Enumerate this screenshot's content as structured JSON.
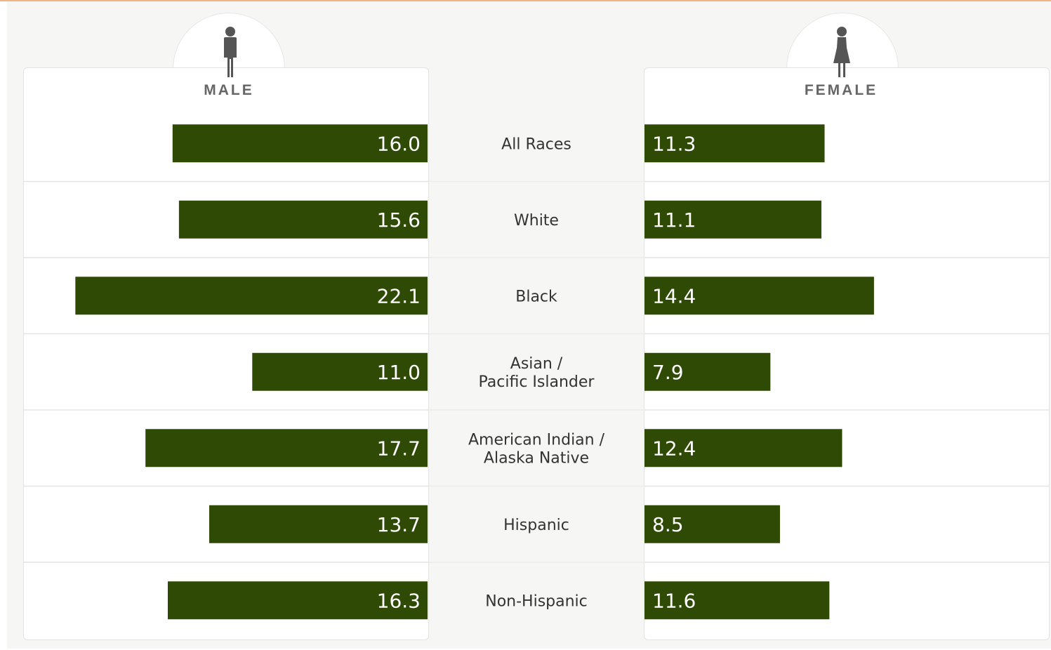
{
  "chart_data": {
    "type": "bar",
    "categories": [
      "All Races",
      "White",
      "Black",
      "Asian / Pacific Islander",
      "American Indian / Alaska Native",
      "Hispanic",
      "Non-Hispanic"
    ],
    "category_lines": [
      [
        "All Races"
      ],
      [
        "White"
      ],
      [
        "Black"
      ],
      [
        "Asian /",
        "Pacific Islander"
      ],
      [
        "American Indian /",
        "Alaska Native"
      ],
      [
        "Hispanic"
      ],
      [
        "Non-Hispanic"
      ]
    ],
    "series": [
      {
        "name": "MALE",
        "values": [
          16.0,
          15.6,
          22.1,
          11.0,
          17.7,
          13.7,
          16.3
        ],
        "labels": [
          "16.0",
          "15.6",
          "22.1",
          "11.0",
          "17.7",
          "13.7",
          "16.3"
        ]
      },
      {
        "name": "FEMALE",
        "values": [
          11.3,
          11.1,
          14.4,
          7.9,
          12.4,
          8.5,
          11.6
        ],
        "labels": [
          "11.3",
          "11.1",
          "14.4",
          "7.9",
          "12.4",
          "8.5",
          "11.6"
        ]
      }
    ],
    "bar_color": "#2e4a04",
    "layout_style": "back-to-back horizontal bars"
  },
  "panels": {
    "male": {
      "title": "MALE",
      "icon": "male-figure-icon"
    },
    "female": {
      "title": "FEMALE",
      "icon": "female-figure-icon"
    }
  }
}
